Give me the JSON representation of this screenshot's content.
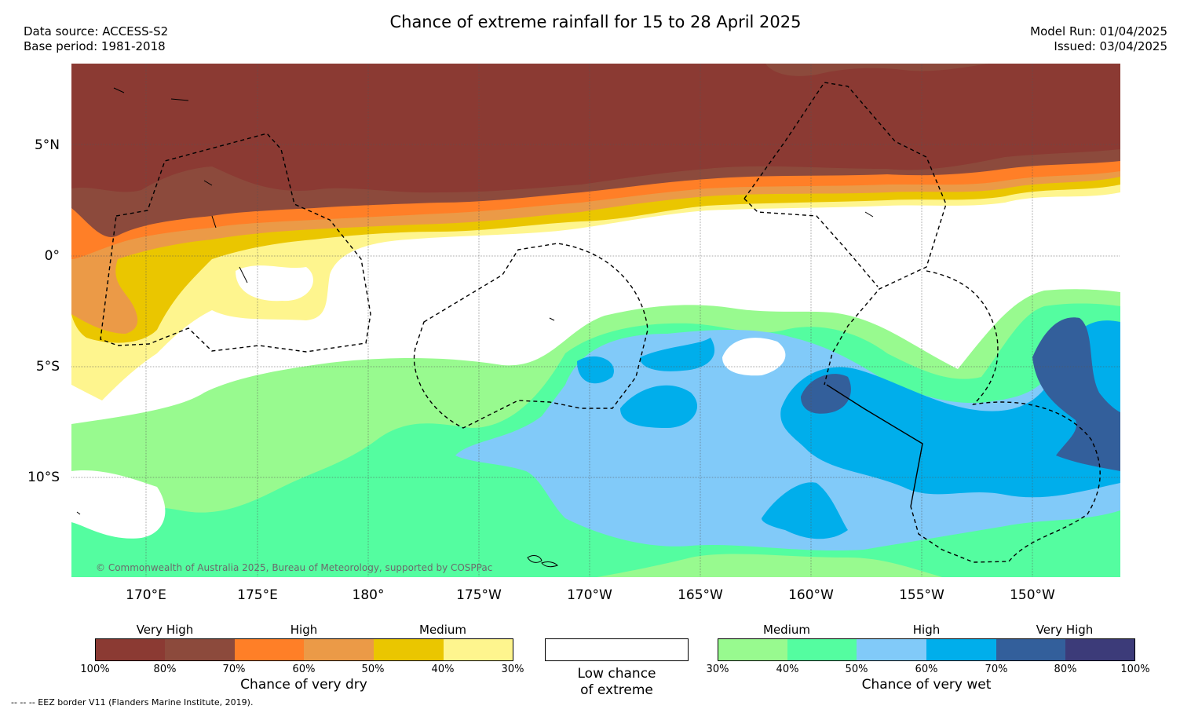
{
  "title": "Chance of extreme rainfall for 15 to 28 April 2025",
  "header": {
    "data_source": "Data source: ACCESS-S2",
    "base_period": "Base period: 1981-2018",
    "model_run": "Model Run: 01/04/2025",
    "issued": "Issued: 03/04/2025"
  },
  "axes": {
    "lat_labels": [
      "5°N",
      "0°",
      "5°S",
      "10°S"
    ],
    "lon_labels": [
      "170°E",
      "175°E",
      "180°",
      "175°W",
      "170°W",
      "165°W",
      "160°W",
      "155°W",
      "150°W"
    ]
  },
  "copyright": "© Commonwealth of Australia 2025, Bureau of Meteorology, supported by COSPPac",
  "legend": {
    "dry": {
      "headings": [
        "Very High",
        "High",
        "Medium"
      ],
      "colors": [
        "#8b3a33",
        "#8c4a3c",
        "#ff7f27",
        "#eb9a47",
        "#eac600",
        "#fef58e"
      ],
      "pcts": [
        "100%",
        "80%",
        "70%",
        "60%",
        "50%",
        "40%",
        "30%"
      ],
      "caption": "Chance of very dry"
    },
    "low": {
      "caption_line1": "Low chance",
      "caption_line2": "of extreme",
      "color": "#ffffff"
    },
    "wet": {
      "headings": [
        "Medium",
        "High",
        "Very High"
      ],
      "colors": [
        "#98fa8f",
        "#54fda0",
        "#81caf9",
        "#00aeeb",
        "#335f9b",
        "#3c3b79"
      ],
      "pcts": [
        "30%",
        "40%",
        "50%",
        "60%",
        "70%",
        "80%",
        "100%"
      ],
      "caption": "Chance of very wet"
    }
  },
  "footer": "--  --  -- EEZ border V11 (Flanders Marine Institute, 2019)."
}
